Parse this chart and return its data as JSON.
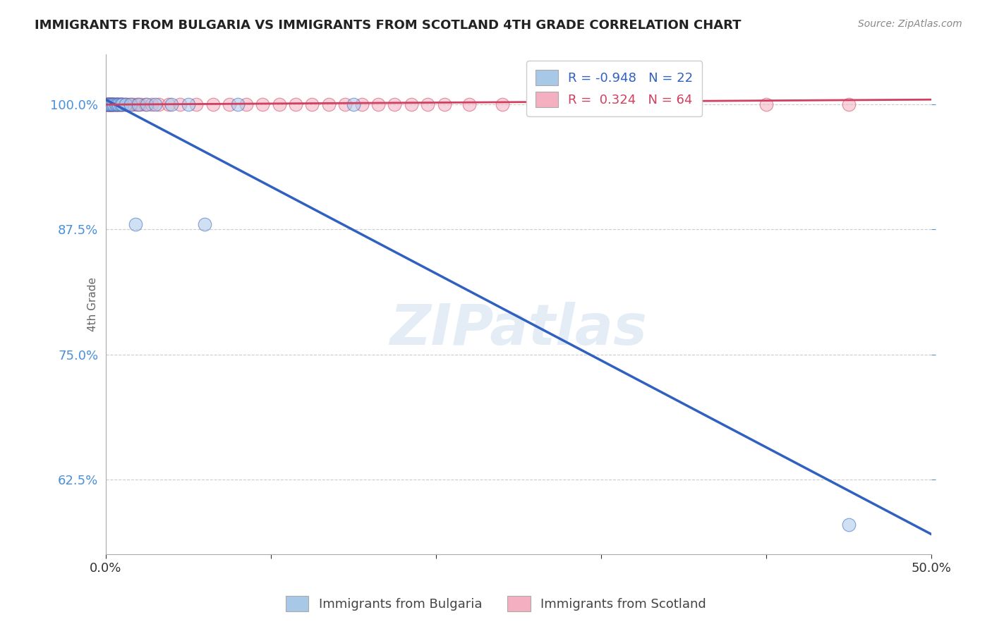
{
  "title": "IMMIGRANTS FROM BULGARIA VS IMMIGRANTS FROM SCOTLAND 4TH GRADE CORRELATION CHART",
  "source_text": "Source: ZipAtlas.com",
  "ylabel": "4th Grade",
  "yticks": [
    62.5,
    75.0,
    87.5,
    100.0
  ],
  "ytick_labels": [
    "62.5%",
    "75.0%",
    "87.5%",
    "100.0%"
  ],
  "xlim": [
    0.0,
    50.0
  ],
  "ylim": [
    55.0,
    105.0
  ],
  "watermark": "ZIPatlas",
  "legend_r_blue": "-0.948",
  "legend_n_blue": "22",
  "legend_r_pink": "0.324",
  "legend_n_pink": "64",
  "blue_color": "#a8c8e8",
  "pink_color": "#f4b0c0",
  "trend_blue_color": "#3060c0",
  "trend_pink_color": "#d04060",
  "background_color": "#ffffff",
  "blue_scatter_x": [
    0.1,
    0.2,
    0.3,
    0.4,
    0.5,
    0.6,
    0.7,
    0.8,
    0.9,
    1.0,
    1.2,
    1.5,
    1.8,
    2.0,
    2.5,
    3.0,
    4.0,
    5.0,
    6.0,
    8.0,
    15.0,
    45.0
  ],
  "blue_scatter_y": [
    100.0,
    100.0,
    100.0,
    100.0,
    100.0,
    100.0,
    100.0,
    100.0,
    100.0,
    100.0,
    100.0,
    100.0,
    88.0,
    100.0,
    100.0,
    100.0,
    100.0,
    100.0,
    88.0,
    100.0,
    100.0,
    58.0
  ],
  "pink_scatter_x": [
    0.05,
    0.08,
    0.1,
    0.12,
    0.15,
    0.18,
    0.2,
    0.22,
    0.25,
    0.28,
    0.3,
    0.32,
    0.35,
    0.38,
    0.4,
    0.43,
    0.45,
    0.5,
    0.55,
    0.6,
    0.65,
    0.7,
    0.75,
    0.8,
    0.85,
    0.9,
    0.95,
    1.0,
    1.1,
    1.2,
    1.3,
    1.5,
    1.7,
    1.9,
    2.1,
    2.4,
    2.8,
    3.2,
    3.8,
    4.5,
    5.5,
    6.5,
    7.5,
    8.5,
    9.5,
    10.5,
    11.5,
    12.5,
    13.5,
    14.5,
    15.5,
    16.5,
    17.5,
    18.5,
    19.5,
    20.5,
    22.0,
    24.0,
    26.0,
    28.5,
    30.5,
    35.0,
    40.0,
    45.0
  ],
  "pink_scatter_y": [
    100.0,
    100.0,
    100.0,
    100.0,
    100.0,
    100.0,
    100.0,
    100.0,
    100.0,
    100.0,
    100.0,
    100.0,
    100.0,
    100.0,
    100.0,
    100.0,
    100.0,
    100.0,
    100.0,
    100.0,
    100.0,
    100.0,
    100.0,
    100.0,
    100.0,
    100.0,
    100.0,
    100.0,
    100.0,
    100.0,
    100.0,
    100.0,
    100.0,
    100.0,
    100.0,
    100.0,
    100.0,
    100.0,
    100.0,
    100.0,
    100.0,
    100.0,
    100.0,
    100.0,
    100.0,
    100.0,
    100.0,
    100.0,
    100.0,
    100.0,
    100.0,
    100.0,
    100.0,
    100.0,
    100.0,
    100.0,
    100.0,
    100.0,
    100.0,
    100.0,
    100.0,
    100.0,
    100.0,
    100.0
  ],
  "blue_trend_x0": 0.0,
  "blue_trend_y0": 100.5,
  "blue_trend_x1": 50.0,
  "blue_trend_y1": 57.0,
  "pink_trend_x0": 0.0,
  "pink_trend_y0": 100.0,
  "pink_trend_x1": 50.0,
  "pink_trend_y1": 100.5
}
